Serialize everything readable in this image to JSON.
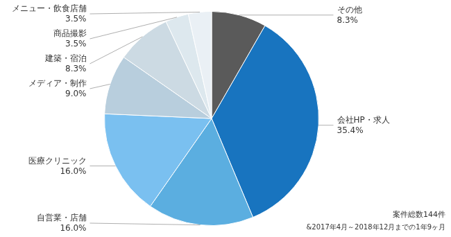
{
  "chart_data": {
    "type": "pie",
    "categories": [
      "その他",
      "会社HP・求人",
      "自営業・店舗",
      "医療クリニック",
      "メディア・制作",
      "建築・宿泊",
      "商品撮影",
      "メニュー・飲食店舗"
    ],
    "values": [
      8.3,
      35.4,
      16.0,
      16.0,
      9.0,
      8.3,
      3.5,
      3.5
    ],
    "value_labels": [
      "8.3%",
      "35.4%",
      "16.0%",
      "16.0%",
      "9.0%",
      "8.3%",
      "3.5%",
      "3.5%"
    ],
    "colors": [
      "#5a5a5a",
      "#1874bf",
      "#5baee0",
      "#7ac0f0",
      "#b8cedd",
      "#ccdae3",
      "#dde8ee",
      "#eaf0f5"
    ],
    "data_labels": true,
    "annotations": [
      "案件総数144件",
      "&2017年4月～2018年12月までの1年9ヶ月"
    ]
  }
}
